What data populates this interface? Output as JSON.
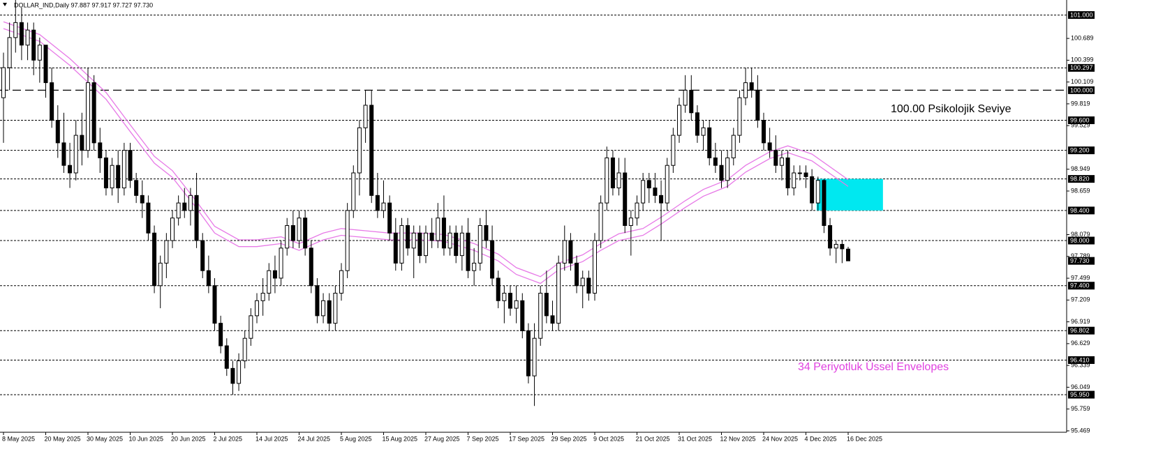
{
  "chart_data": {
    "type": "candlestick",
    "title": "DOLLAR_IND,Daily  97.887 97.917 97.727 97.730",
    "annotations": [
      "100.00 Psikolojik Seviye",
      "34 Periyotluk Üssel Envelopes"
    ],
    "categories": [
      "8 May 2025",
      null,
      null,
      null,
      null,
      null,
      null,
      "20 May 2025",
      null,
      null,
      null,
      null,
      null,
      null,
      "30 May 2025",
      null,
      null,
      null,
      null,
      null,
      null,
      "10 Jun 2025",
      null,
      null,
      null,
      null,
      null,
      null,
      "20 Jun 2025",
      null,
      null,
      null,
      null,
      null,
      null,
      "2 Jul 2025",
      null,
      null,
      null,
      null,
      null,
      null,
      "14 Jul 2025",
      null,
      null,
      null,
      null,
      null,
      null,
      "24 Jul 2025",
      null,
      null,
      null,
      null,
      null,
      null,
      "5 Aug 2025",
      null,
      null,
      null,
      null,
      null,
      null,
      "15 Aug 2025",
      null,
      null,
      null,
      null,
      null,
      null,
      "27 Aug 2025",
      null,
      null,
      null,
      null,
      null,
      null,
      "7 Sep 2025",
      null,
      null,
      null,
      null,
      null,
      null,
      "17 Sep 2025",
      null,
      null,
      null,
      null,
      null,
      null,
      "29 Sep 2025",
      null,
      null,
      null,
      null,
      null,
      null,
      "9 Oct 2025",
      null,
      null,
      null,
      null,
      null,
      null,
      "21 Oct 2025",
      null,
      null,
      null,
      null,
      null,
      null,
      "31 Oct 2025",
      null,
      null,
      null,
      null,
      null,
      null,
      "12 Nov 2025",
      null,
      null,
      null,
      null,
      null,
      null,
      "24 Nov 2025",
      null,
      null,
      null,
      null,
      null,
      null,
      "4 Dec 2025",
      null,
      null,
      null,
      null,
      null,
      null,
      "16 Dec 2025"
    ],
    "ohlc": [
      [
        99.9,
        100.5,
        99.3,
        100.3
      ],
      [
        100.3,
        100.9,
        100.0,
        100.7
      ],
      [
        100.7,
        101.2,
        100.5,
        100.9
      ],
      [
        100.9,
        101.1,
        100.4,
        100.6
      ],
      [
        100.6,
        100.9,
        100.4,
        100.8
      ],
      [
        100.8,
        100.9,
        100.2,
        100.4
      ],
      [
        100.4,
        100.7,
        100.1,
        100.6
      ],
      [
        100.6,
        100.6,
        99.9,
        100.1
      ],
      [
        100.1,
        100.3,
        99.5,
        99.6
      ],
      [
        99.6,
        99.8,
        99.1,
        99.3
      ],
      [
        99.3,
        99.7,
        98.9,
        99.0
      ],
      [
        99.0,
        99.3,
        98.7,
        98.9
      ],
      [
        98.9,
        99.6,
        98.8,
        99.4
      ],
      [
        99.4,
        99.7,
        99.0,
        99.2
      ],
      [
        99.2,
        100.3,
        99.1,
        100.1
      ],
      [
        100.1,
        100.2,
        99.2,
        99.3
      ],
      [
        99.3,
        99.5,
        98.9,
        99.1
      ],
      [
        99.1,
        99.2,
        98.6,
        98.7
      ],
      [
        98.7,
        99.1,
        98.6,
        99.0
      ],
      [
        99.0,
        99.2,
        98.5,
        98.7
      ],
      [
        98.7,
        99.3,
        98.6,
        99.2
      ],
      [
        99.2,
        99.3,
        98.7,
        98.8
      ],
      [
        98.8,
        98.9,
        98.5,
        98.6
      ],
      [
        98.6,
        98.8,
        98.3,
        98.5
      ],
      [
        98.5,
        98.6,
        98.0,
        98.1
      ],
      [
        98.1,
        98.2,
        97.3,
        97.4
      ],
      [
        97.4,
        97.8,
        97.1,
        97.7
      ],
      [
        97.7,
        98.1,
        97.5,
        98.0
      ],
      [
        98.0,
        98.4,
        97.9,
        98.3
      ],
      [
        98.3,
        98.6,
        98.2,
        98.5
      ],
      [
        98.5,
        98.7,
        98.3,
        98.4
      ],
      [
        98.4,
        98.7,
        98.2,
        98.6
      ],
      [
        98.6,
        98.9,
        97.9,
        98.0
      ],
      [
        98.0,
        98.1,
        97.5,
        97.6
      ],
      [
        97.6,
        97.8,
        97.3,
        97.4
      ],
      [
        97.4,
        97.5,
        96.8,
        96.9
      ],
      [
        96.9,
        97.0,
        96.5,
        96.6
      ],
      [
        96.6,
        96.7,
        96.2,
        96.3
      ],
      [
        96.3,
        96.4,
        95.95,
        96.1
      ],
      [
        96.1,
        96.5,
        96.0,
        96.4
      ],
      [
        96.4,
        96.8,
        96.3,
        96.7
      ],
      [
        96.7,
        97.1,
        96.6,
        97.0
      ],
      [
        97.0,
        97.3,
        96.9,
        97.2
      ],
      [
        97.2,
        97.5,
        97.0,
        97.3
      ],
      [
        97.3,
        97.7,
        97.2,
        97.6
      ],
      [
        97.6,
        97.8,
        97.3,
        97.5
      ],
      [
        97.5,
        98.0,
        97.4,
        97.9
      ],
      [
        97.9,
        98.3,
        97.8,
        98.2
      ],
      [
        98.2,
        98.4,
        97.9,
        98.0
      ],
      [
        98.0,
        98.4,
        97.9,
        98.3
      ],
      [
        98.3,
        98.4,
        97.8,
        97.9
      ],
      [
        97.9,
        98.0,
        97.3,
        97.4
      ],
      [
        97.4,
        97.5,
        96.9,
        97.0
      ],
      [
        97.0,
        97.3,
        96.9,
        97.2
      ],
      [
        97.2,
        97.3,
        96.8,
        96.9
      ],
      [
        96.9,
        97.4,
        96.8,
        97.3
      ],
      [
        97.3,
        97.7,
        97.2,
        97.6
      ],
      [
        97.6,
        98.5,
        97.5,
        98.4
      ],
      [
        98.4,
        99.0,
        98.3,
        98.9
      ],
      [
        98.9,
        99.6,
        98.6,
        99.5
      ],
      [
        99.5,
        100.0,
        99.3,
        99.8
      ],
      [
        99.8,
        100.0,
        98.5,
        98.6
      ],
      [
        98.6,
        98.9,
        98.3,
        98.4
      ],
      [
        98.4,
        98.8,
        98.3,
        98.5
      ],
      [
        98.5,
        98.6,
        98.0,
        98.1
      ],
      [
        98.1,
        98.3,
        97.6,
        97.7
      ],
      [
        97.7,
        98.3,
        97.6,
        98.2
      ],
      [
        98.2,
        98.3,
        97.8,
        97.9
      ],
      [
        97.9,
        98.2,
        97.5,
        98.1
      ],
      [
        98.1,
        98.2,
        97.7,
        97.8
      ],
      [
        97.8,
        98.2,
        97.7,
        98.1
      ],
      [
        98.1,
        98.3,
        97.9,
        98.0
      ],
      [
        98.0,
        98.5,
        97.9,
        98.3
      ],
      [
        98.3,
        98.6,
        97.8,
        97.9
      ],
      [
        97.9,
        98.2,
        97.8,
        98.1
      ],
      [
        98.1,
        98.2,
        97.7,
        97.8
      ],
      [
        97.8,
        98.2,
        97.6,
        98.1
      ],
      [
        98.1,
        98.3,
        97.5,
        97.6
      ],
      [
        97.6,
        97.9,
        97.4,
        97.7
      ],
      [
        97.7,
        98.3,
        97.6,
        98.2
      ],
      [
        98.2,
        98.4,
        97.9,
        98.0
      ],
      [
        98.0,
        98.2,
        97.4,
        97.5
      ],
      [
        97.5,
        97.6,
        97.1,
        97.2
      ],
      [
        97.2,
        97.4,
        96.9,
        97.3
      ],
      [
        97.3,
        97.4,
        97.0,
        97.1
      ],
      [
        97.1,
        97.4,
        96.9,
        97.2
      ],
      [
        97.2,
        97.3,
        96.7,
        96.8
      ],
      [
        96.8,
        96.9,
        96.1,
        96.2
      ],
      [
        96.2,
        96.9,
        95.8,
        96.7
      ],
      [
        96.7,
        97.4,
        96.6,
        97.3
      ],
      [
        97.3,
        97.6,
        96.9,
        97.0
      ],
      [
        97.0,
        97.2,
        96.8,
        96.9
      ],
      [
        96.9,
        97.8,
        96.8,
        97.7
      ],
      [
        97.7,
        98.2,
        97.6,
        98.0
      ],
      [
        98.0,
        98.1,
        97.6,
        97.7
      ],
      [
        97.7,
        97.8,
        97.3,
        97.4
      ],
      [
        97.4,
        97.6,
        97.1,
        97.5
      ],
      [
        97.5,
        97.6,
        97.2,
        97.3
      ],
      [
        97.3,
        98.1,
        97.2,
        98.0
      ],
      [
        98.0,
        98.6,
        97.9,
        98.5
      ],
      [
        98.5,
        99.25,
        98.4,
        99.1
      ],
      [
        99.1,
        99.2,
        98.6,
        98.7
      ],
      [
        98.7,
        99.1,
        98.6,
        98.9
      ],
      [
        98.9,
        99.1,
        98.1,
        98.2
      ],
      [
        98.2,
        98.4,
        97.8,
        98.3
      ],
      [
        98.3,
        98.6,
        98.2,
        98.5
      ],
      [
        98.5,
        98.9,
        98.4,
        98.8
      ],
      [
        98.8,
        98.9,
        98.5,
        98.7
      ],
      [
        98.7,
        98.9,
        98.5,
        98.6
      ],
      [
        98.6,
        98.8,
        98.0,
        98.5
      ],
      [
        98.5,
        99.1,
        98.4,
        99.0
      ],
      [
        99.0,
        99.5,
        98.9,
        99.4
      ],
      [
        99.4,
        99.9,
        99.3,
        99.8
      ],
      [
        99.8,
        100.2,
        99.7,
        100.0
      ],
      [
        100.0,
        100.2,
        99.6,
        99.7
      ],
      [
        99.7,
        99.8,
        99.3,
        99.4
      ],
      [
        99.4,
        99.6,
        99.2,
        99.5
      ],
      [
        99.5,
        99.6,
        99.0,
        99.1
      ],
      [
        99.1,
        99.3,
        98.9,
        99.0
      ],
      [
        99.0,
        99.2,
        98.7,
        98.8
      ],
      [
        98.8,
        99.2,
        98.7,
        99.1
      ],
      [
        99.1,
        99.5,
        99.0,
        99.4
      ],
      [
        99.4,
        100.0,
        99.3,
        99.9
      ],
      [
        99.9,
        100.3,
        99.8,
        100.1
      ],
      [
        100.1,
        100.3,
        99.9,
        100.0
      ],
      [
        100.0,
        100.2,
        99.5,
        99.6
      ],
      [
        99.6,
        99.7,
        99.2,
        99.3
      ],
      [
        99.3,
        99.5,
        99.1,
        99.2
      ],
      [
        99.2,
        99.4,
        98.9,
        99.0
      ],
      [
        99.0,
        99.2,
        98.8,
        99.1
      ],
      [
        99.1,
        99.2,
        98.6,
        98.7
      ],
      [
        98.7,
        99.0,
        98.6,
        98.9
      ],
      [
        98.9,
        99.0,
        98.8,
        98.9
      ],
      [
        98.9,
        99.0,
        98.7,
        98.85
      ],
      [
        98.85,
        98.95,
        98.4,
        98.5
      ],
      [
        98.5,
        98.85,
        98.4,
        98.8
      ],
      [
        98.8,
        98.82,
        98.1,
        98.2
      ],
      [
        98.2,
        98.3,
        97.8,
        97.9
      ],
      [
        97.9,
        98.0,
        97.7,
        97.95
      ],
      [
        97.95,
        98.0,
        97.7,
        97.89
      ],
      [
        97.887,
        97.917,
        97.727,
        97.73
      ]
    ],
    "ylim": [
      95.45,
      101.2
    ],
    "yticks": [
      95.469,
      95.759,
      96.049,
      96.339,
      96.629,
      96.919,
      97.209,
      97.499,
      97.789,
      98.079,
      98.659,
      98.949,
      99.529,
      99.819,
      100.109,
      100.399,
      100.689
    ],
    "levels": [
      {
        "value": 101,
        "label": "101.000"
      },
      {
        "value": 100.297,
        "label": "100.297"
      },
      {
        "value": 99.6,
        "label": "99.600"
      },
      {
        "value": 99.2,
        "label": "99.200"
      },
      {
        "value": 98.82,
        "label": "98.820"
      },
      {
        "value": 98.4,
        "label": "98.400"
      },
      {
        "value": 98,
        "label": "98.000"
      },
      {
        "value": 97.4,
        "label": "97.400"
      },
      {
        "value": 96.802,
        "label": "96.802"
      },
      {
        "value": 96.41,
        "label": "96.410"
      },
      {
        "value": 95.95,
        "label": "95.950"
      }
    ],
    "psych_level": {
      "value": 100,
      "label": "100.000"
    },
    "price_label": {
      "value": 97.73,
      "label": "97.730"
    },
    "zone": {
      "x": [
        135,
        146
      ],
      "from": 98.4,
      "to": 98.82,
      "color": "#00e8f0"
    },
    "envelope": {
      "color": "#e77ae7",
      "x": [
        0,
        6,
        11,
        17,
        21,
        25,
        28,
        32,
        35,
        39,
        42,
        46,
        49,
        53,
        56,
        60,
        64,
        69,
        73,
        78,
        82,
        85,
        89,
        92,
        96,
        99,
        102,
        106,
        109,
        113,
        116,
        120,
        123,
        127,
        130,
        134,
        140
      ],
      "upper": [
        100.91,
        100.74,
        100.42,
        99.97,
        99.54,
        99.12,
        98.93,
        98.52,
        98.19,
        98.01,
        98.01,
        98.05,
        97.96,
        98.1,
        98.16,
        98.13,
        98.1,
        98.1,
        98.08,
        97.96,
        97.82,
        97.64,
        97.52,
        97.7,
        97.81,
        97.96,
        98.09,
        98.16,
        98.31,
        98.53,
        98.68,
        98.81,
        99.0,
        99.18,
        99.26,
        99.15,
        98.81
      ],
      "lower": [
        100.82,
        100.65,
        100.33,
        99.88,
        99.45,
        99.03,
        98.84,
        98.43,
        98.1,
        97.92,
        97.92,
        97.96,
        97.87,
        98.01,
        98.07,
        98.04,
        98.01,
        98.01,
        97.99,
        97.87,
        97.73,
        97.55,
        97.43,
        97.61,
        97.72,
        97.87,
        98.0,
        98.07,
        98.22,
        98.44,
        98.59,
        98.72,
        98.91,
        99.09,
        99.17,
        99.06,
        98.72
      ]
    }
  }
}
